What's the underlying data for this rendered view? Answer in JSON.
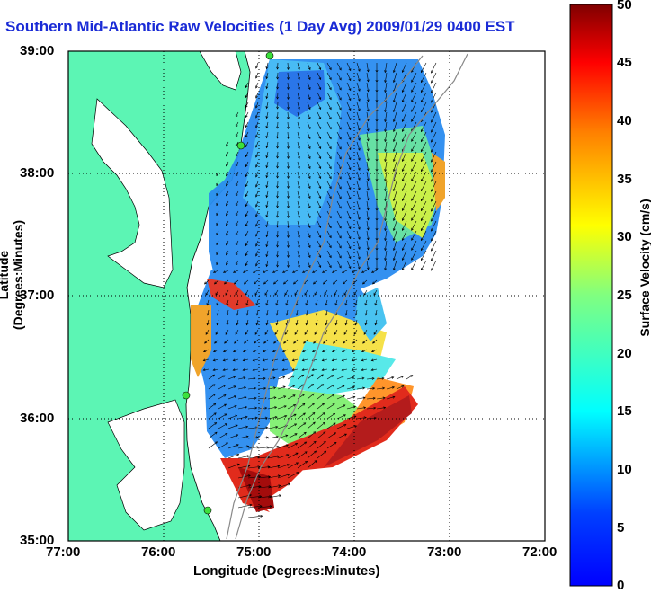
{
  "title": "Southern Mid-Atlantic Raw Velocities (1 Day Avg) 2009/01/29 0400 EST",
  "axes": {
    "x_label": "Longitude (Degrees:Minutes)",
    "y_label": "Latitude (Degrees:Minutes)",
    "x_ticks": [
      "77:00",
      "76:00",
      "75:00",
      "74:00",
      "73:00",
      "72:00"
    ],
    "y_ticks": [
      "39:00",
      "38:00",
      "37:00",
      "36:00",
      "35:00"
    ],
    "grid": "dotted"
  },
  "colorbar": {
    "label": "Surface Velocity (cm/s)",
    "ticks": [
      "50",
      "45",
      "40",
      "35",
      "30",
      "25",
      "20",
      "15",
      "10",
      "5",
      "0"
    ],
    "range": [
      0,
      50
    ],
    "colormap": "jet"
  },
  "colors": {
    "land": "#5cf5b4",
    "water_background": "#ffffff",
    "title": "#1a2bd6",
    "station": "#3ce03c"
  }
}
